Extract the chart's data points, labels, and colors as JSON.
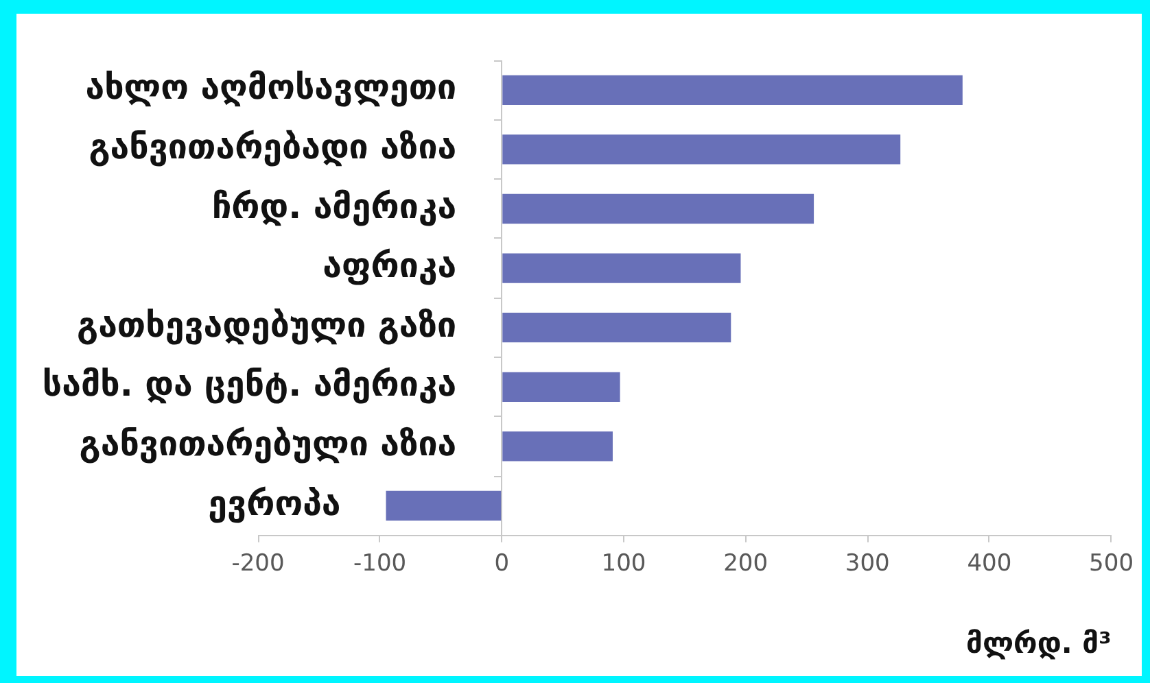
{
  "chart_data": {
    "type": "bar",
    "orientation": "horizontal",
    "categories": [
      "ახლო აღმოსავლეთი",
      "განვითარებადი აზია",
      "ჩრდ. ამერიკა",
      "აფრიკა",
      "გათხევადებული გაზი",
      "სამხ. და ცენტ. ამერიკა",
      "განვითარებული აზია",
      "ევროპა"
    ],
    "values": [
      378,
      327,
      256,
      196,
      188,
      97,
      91,
      -95
    ],
    "color": "#6870b8",
    "xlabel": "მლრდ. მ³",
    "xlim": [
      -200,
      500
    ],
    "xticks": [
      -200,
      -100,
      0,
      100,
      200,
      300,
      400,
      500
    ]
  }
}
